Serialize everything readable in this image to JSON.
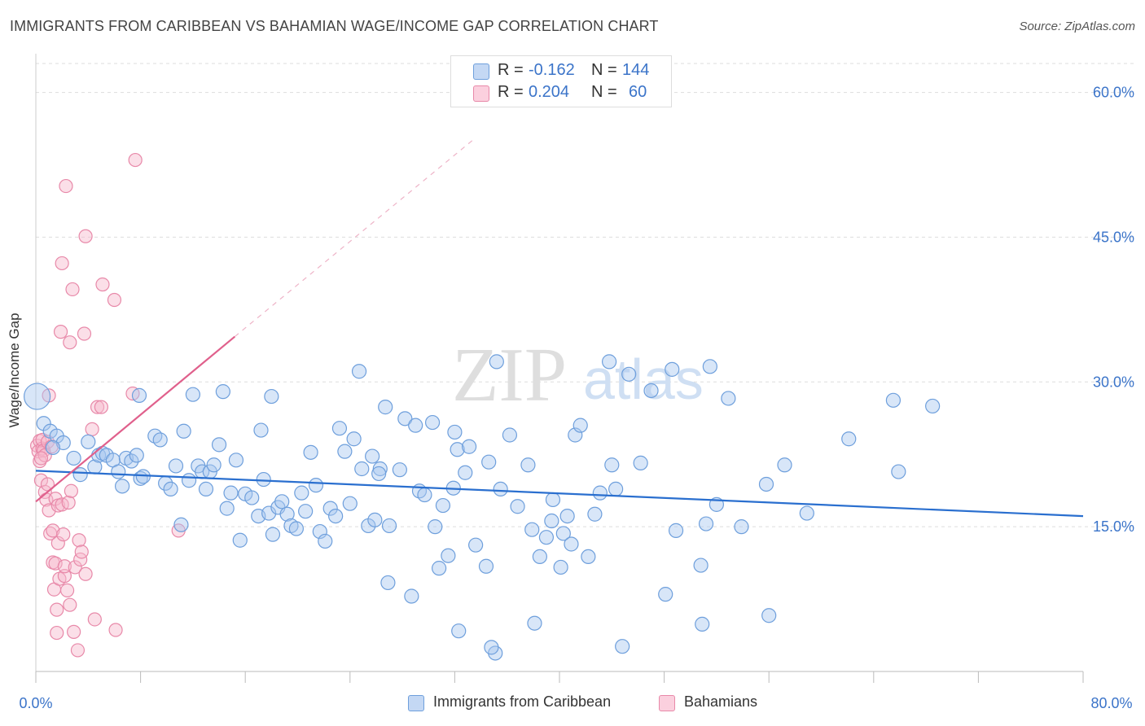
{
  "title": "IMMIGRANTS FROM CARIBBEAN VS BAHAMIAN WAGE/INCOME GAP CORRELATION CHART",
  "source": "Source: ZipAtlas.com",
  "watermark": {
    "left": "ZIP",
    "right": "atlas"
  },
  "colors": {
    "blue_fill": "#a9c8ef",
    "blue_stroke": "#6e9fdc",
    "blue_line": "#2a6fcf",
    "pink_fill": "#f6b8cd",
    "pink_stroke": "#e889a9",
    "pink_line": "#e0608c",
    "axis_text": "#3b74c9",
    "grid": "#dddddd"
  },
  "legend_top": [
    {
      "r_label": "R =",
      "r_value": "-0.162",
      "n_label": "N =",
      "n_value": "144"
    },
    {
      "r_label": "R =",
      "r_value": "0.204",
      "n_label": "N =",
      "n_value": "60"
    }
  ],
  "legend_bottom": [
    "Immigrants from Caribbean",
    "Bahamians"
  ],
  "chart_data": {
    "type": "scatter",
    "title": "IMMIGRANTS FROM CARIBBEAN VS BAHAMIAN WAGE/INCOME GAP CORRELATION CHART",
    "xlabel": "",
    "ylabel": "Wage/Income Gap",
    "xlim": [
      0,
      80
    ],
    "ylim": [
      0,
      63
    ],
    "x_tick_labels": [
      "0.0%",
      "80.0%"
    ],
    "y_ticks": [
      15,
      30,
      45,
      60
    ],
    "y_tick_labels": [
      "15.0%",
      "30.0%",
      "45.0%",
      "60.0%"
    ],
    "grid": true,
    "legend_position": "top-center",
    "series": [
      {
        "name": "Immigrants from Caribbean",
        "r": -0.162,
        "n": 144,
        "trend": {
          "x": [
            0,
            80
          ],
          "y": [
            20.8,
            16.1
          ],
          "style": "solid"
        },
        "points": [
          [
            0.1,
            28.5
          ],
          [
            0.6,
            25.7
          ],
          [
            1.1,
            24.9
          ],
          [
            1.6,
            24.4
          ],
          [
            2.1,
            23.7
          ],
          [
            1.3,
            23.2
          ],
          [
            2.9,
            22.1
          ],
          [
            3.4,
            20.4
          ],
          [
            4.0,
            23.8
          ],
          [
            4.5,
            21.2
          ],
          [
            4.8,
            22.4
          ],
          [
            5.1,
            22.6
          ],
          [
            5.4,
            22.4
          ],
          [
            5.9,
            21.9
          ],
          [
            6.3,
            20.7
          ],
          [
            6.6,
            19.2
          ],
          [
            6.9,
            22.1
          ],
          [
            7.3,
            21.8
          ],
          [
            7.7,
            22.4
          ],
          [
            8.0,
            20.0
          ],
          [
            8.2,
            20.2
          ],
          [
            7.9,
            28.6
          ],
          [
            9.1,
            24.4
          ],
          [
            9.5,
            24.0
          ],
          [
            9.9,
            19.5
          ],
          [
            10.3,
            18.9
          ],
          [
            10.7,
            21.3
          ],
          [
            11.1,
            15.2
          ],
          [
            11.3,
            24.9
          ],
          [
            11.7,
            19.8
          ],
          [
            12.0,
            28.7
          ],
          [
            12.4,
            21.3
          ],
          [
            12.7,
            20.7
          ],
          [
            13.0,
            18.9
          ],
          [
            13.3,
            20.7
          ],
          [
            13.6,
            21.4
          ],
          [
            14.0,
            23.5
          ],
          [
            14.3,
            29.0
          ],
          [
            14.6,
            16.9
          ],
          [
            14.9,
            18.5
          ],
          [
            15.3,
            21.9
          ],
          [
            15.6,
            13.6
          ],
          [
            16.0,
            18.4
          ],
          [
            16.5,
            18.0
          ],
          [
            17.0,
            16.1
          ],
          [
            17.4,
            19.9
          ],
          [
            17.8,
            16.4
          ],
          [
            18.1,
            14.2
          ],
          [
            18.5,
            17.0
          ],
          [
            18.8,
            17.6
          ],
          [
            19.2,
            16.3
          ],
          [
            19.5,
            15.1
          ],
          [
            19.9,
            14.8
          ],
          [
            20.3,
            18.5
          ],
          [
            20.6,
            16.6
          ],
          [
            21.0,
            22.7
          ],
          [
            21.4,
            19.3
          ],
          [
            21.7,
            14.5
          ],
          [
            22.1,
            13.5
          ],
          [
            22.5,
            16.9
          ],
          [
            22.9,
            16.1
          ],
          [
            23.2,
            25.2
          ],
          [
            23.6,
            22.8
          ],
          [
            24.0,
            17.4
          ],
          [
            24.3,
            24.1
          ],
          [
            24.7,
            31.1
          ],
          [
            24.9,
            21.0
          ],
          [
            25.4,
            15.1
          ],
          [
            25.7,
            22.3
          ],
          [
            25.9,
            15.7
          ],
          [
            26.3,
            21.0
          ],
          [
            26.7,
            27.4
          ],
          [
            27.0,
            15.1
          ],
          [
            26.9,
            9.2
          ],
          [
            27.8,
            20.9
          ],
          [
            28.2,
            26.2
          ],
          [
            28.7,
            7.8
          ],
          [
            29.0,
            25.5
          ],
          [
            29.3,
            18.7
          ],
          [
            29.7,
            18.3
          ],
          [
            30.3,
            25.8
          ],
          [
            30.5,
            15.0
          ],
          [
            30.8,
            10.7
          ],
          [
            31.1,
            17.2
          ],
          [
            31.5,
            12.0
          ],
          [
            31.9,
            19.0
          ],
          [
            32.2,
            23.0
          ],
          [
            32.3,
            4.2
          ],
          [
            32.8,
            20.6
          ],
          [
            33.1,
            23.3
          ],
          [
            33.6,
            13.1
          ],
          [
            34.4,
            10.9
          ],
          [
            34.6,
            21.7
          ],
          [
            35.2,
            32.1
          ],
          [
            35.5,
            18.9
          ],
          [
            36.2,
            24.5
          ],
          [
            36.8,
            17.1
          ],
          [
            37.6,
            21.4
          ],
          [
            37.9,
            14.7
          ],
          [
            38.1,
            5.0
          ],
          [
            38.5,
            11.9
          ],
          [
            39.0,
            13.9
          ],
          [
            39.4,
            15.6
          ],
          [
            39.5,
            17.8
          ],
          [
            40.1,
            10.8
          ],
          [
            40.3,
            14.3
          ],
          [
            40.6,
            16.1
          ],
          [
            40.9,
            13.2
          ],
          [
            41.2,
            24.5
          ],
          [
            41.6,
            25.5
          ],
          [
            42.2,
            11.9
          ],
          [
            42.7,
            16.3
          ],
          [
            43.1,
            18.5
          ],
          [
            43.8,
            32.1
          ],
          [
            44.0,
            21.4
          ],
          [
            44.3,
            18.9
          ],
          [
            44.8,
            2.6
          ],
          [
            45.3,
            30.8
          ],
          [
            46.2,
            21.6
          ],
          [
            47.0,
            29.1
          ],
          [
            48.1,
            8.0
          ],
          [
            48.6,
            31.3
          ],
          [
            48.9,
            14.6
          ],
          [
            50.8,
            11.0
          ],
          [
            50.9,
            4.9
          ],
          [
            51.2,
            15.3
          ],
          [
            51.5,
            31.6
          ],
          [
            52.0,
            17.3
          ],
          [
            52.9,
            28.3
          ],
          [
            53.9,
            15.0
          ],
          [
            55.8,
            19.4
          ],
          [
            56.0,
            5.8
          ],
          [
            57.2,
            21.4
          ],
          [
            58.9,
            16.4
          ],
          [
            62.1,
            24.1
          ],
          [
            65.5,
            28.1
          ],
          [
            65.9,
            20.7
          ],
          [
            68.5,
            27.5
          ],
          [
            32.0,
            24.8
          ],
          [
            35.1,
            1.9
          ],
          [
            34.8,
            2.5
          ],
          [
            18.0,
            28.5
          ],
          [
            17.2,
            25.0
          ],
          [
            26.2,
            20.5
          ]
        ]
      },
      {
        "name": "Bahamians",
        "r": 0.204,
        "n": 60,
        "trend": {
          "x": [
            0,
            15.2
          ],
          "y": [
            17.6,
            34.7
          ],
          "style": "solid",
          "extended_x": [
            15.2,
            33.5
          ],
          "extended_y": [
            34.7,
            55.2
          ],
          "extended_style": "dashed"
        },
        "points": [
          [
            0.1,
            23.4
          ],
          [
            0.2,
            22.8
          ],
          [
            0.3,
            23.9
          ],
          [
            0.3,
            21.8
          ],
          [
            0.4,
            19.8
          ],
          [
            0.5,
            23.1
          ],
          [
            0.5,
            24.0
          ],
          [
            0.6,
            22.9
          ],
          [
            0.7,
            22.4
          ],
          [
            0.7,
            18.6
          ],
          [
            0.8,
            17.8
          ],
          [
            0.9,
            23.8
          ],
          [
            0.9,
            19.4
          ],
          [
            1.0,
            28.6
          ],
          [
            1.0,
            16.7
          ],
          [
            1.1,
            14.3
          ],
          [
            1.2,
            23.3
          ],
          [
            1.3,
            11.3
          ],
          [
            1.3,
            14.6
          ],
          [
            1.4,
            8.5
          ],
          [
            1.5,
            17.9
          ],
          [
            1.5,
            11.2
          ],
          [
            1.6,
            6.4
          ],
          [
            1.6,
            4.0
          ],
          [
            1.7,
            13.3
          ],
          [
            1.7,
            17.2
          ],
          [
            1.8,
            9.6
          ],
          [
            1.9,
            35.2
          ],
          [
            2.0,
            17.3
          ],
          [
            2.0,
            42.3
          ],
          [
            2.1,
            14.2
          ],
          [
            2.2,
            9.9
          ],
          [
            2.2,
            10.9
          ],
          [
            2.3,
            50.3
          ],
          [
            2.4,
            8.4
          ],
          [
            2.5,
            17.5
          ],
          [
            2.6,
            6.9
          ],
          [
            2.6,
            34.1
          ],
          [
            2.7,
            18.7
          ],
          [
            2.8,
            39.6
          ],
          [
            2.9,
            4.1
          ],
          [
            3.0,
            10.8
          ],
          [
            3.2,
            2.2
          ],
          [
            3.3,
            13.6
          ],
          [
            3.4,
            11.6
          ],
          [
            3.5,
            12.4
          ],
          [
            3.7,
            35.0
          ],
          [
            3.8,
            10.1
          ],
          [
            3.8,
            45.1
          ],
          [
            4.3,
            25.1
          ],
          [
            4.5,
            5.4
          ],
          [
            4.7,
            27.4
          ],
          [
            5.0,
            27.4
          ],
          [
            5.1,
            40.1
          ],
          [
            6.0,
            38.5
          ],
          [
            6.1,
            4.3
          ],
          [
            7.4,
            28.8
          ],
          [
            7.6,
            53.0
          ],
          [
            10.9,
            14.6
          ],
          [
            0.4,
            22.1
          ]
        ]
      }
    ]
  }
}
